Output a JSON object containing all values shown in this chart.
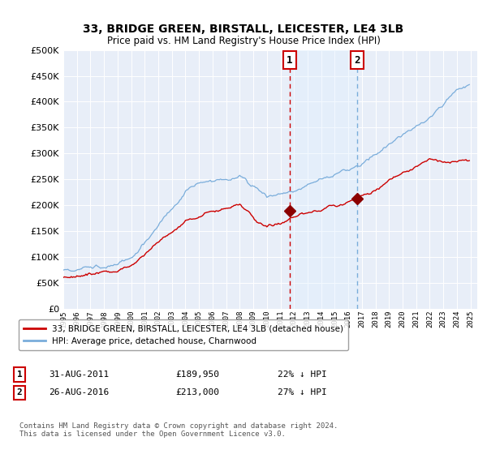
{
  "title": "33, BRIDGE GREEN, BIRSTALL, LEICESTER, LE4 3LB",
  "subtitle": "Price paid vs. HM Land Registry's House Price Index (HPI)",
  "legend_entry1": "33, BRIDGE GREEN, BIRSTALL, LEICESTER, LE4 3LB (detached house)",
  "legend_entry2": "HPI: Average price, detached house, Charnwood",
  "annotation1_label": "1",
  "annotation1_date": "31-AUG-2011",
  "annotation1_price": "£189,950",
  "annotation1_hpi": "22% ↓ HPI",
  "annotation2_label": "2",
  "annotation2_date": "26-AUG-2016",
  "annotation2_price": "£213,000",
  "annotation2_hpi": "27% ↓ HPI",
  "footer": "Contains HM Land Registry data © Crown copyright and database right 2024.\nThis data is licensed under the Open Government Licence v3.0.",
  "hpi_color": "#7aaddb",
  "price_color": "#cc0000",
  "marker_color": "#8b0000",
  "vline1_color": "#cc0000",
  "vline2_color": "#7aaddb",
  "annotation_box_color": "#cc0000",
  "shade_color": "#ddeeff",
  "plot_bg": "#e8eef8",
  "ylim": [
    0,
    500000
  ],
  "yticks": [
    0,
    50000,
    100000,
    150000,
    200000,
    250000,
    300000,
    350000,
    400000,
    450000,
    500000
  ],
  "year_start": 1995,
  "year_end": 2025,
  "sale1_year": 2011.667,
  "sale1_price": 189950,
  "sale2_year": 2016.667,
  "sale2_price": 213000
}
